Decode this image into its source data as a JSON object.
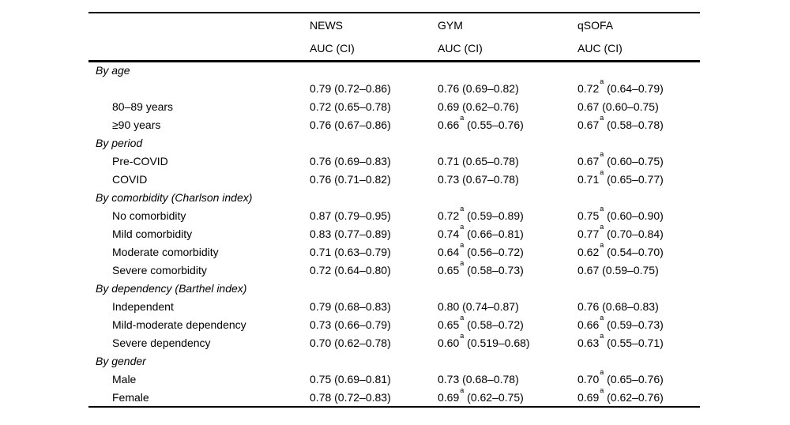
{
  "table": {
    "columns": [
      "NEWS",
      "GYM",
      "qSOFA"
    ],
    "subheaders": [
      "AUC (CI)",
      "AUC (CI)",
      "AUC (CI)"
    ],
    "text_color": "#000000",
    "background_color": "#ffffff",
    "rows": [
      {
        "type": "group",
        "label": "By age",
        "cells": [
          null,
          null,
          null
        ]
      },
      {
        "type": "item",
        "label": "",
        "cells": [
          {
            "auc": "0.79",
            "note": "",
            "ci": "(0.72–0.86)"
          },
          {
            "auc": "0.76",
            "note": "",
            "ci": "(0.69–0.82)"
          },
          {
            "auc": "0.72",
            "note": "a",
            "ci": "(0.64–0.79)"
          }
        ]
      },
      {
        "type": "item",
        "label": "80–89 years",
        "cells": [
          {
            "auc": "0.72",
            "note": "",
            "ci": "(0.65–0.78)"
          },
          {
            "auc": "0.69",
            "note": "",
            "ci": "(0.62–0.76)"
          },
          {
            "auc": "0.67",
            "note": "",
            "ci": "(0.60–0.75)"
          }
        ]
      },
      {
        "type": "item",
        "label": "≥90 years",
        "cells": [
          {
            "auc": "0.76",
            "note": "",
            "ci": "(0.67–0.86)"
          },
          {
            "auc": "0.66",
            "note": "a",
            "ci": "(0.55–0.76)"
          },
          {
            "auc": "0.67",
            "note": "a",
            "ci": "(0.58–0.78)"
          }
        ]
      },
      {
        "type": "group",
        "label": "By period",
        "cells": [
          null,
          null,
          null
        ]
      },
      {
        "type": "item",
        "label": "Pre-COVID",
        "cells": [
          {
            "auc": "0.76",
            "note": "",
            "ci": "(0.69–0.83)"
          },
          {
            "auc": "0.71",
            "note": "",
            "ci": "(0.65–0.78)"
          },
          {
            "auc": "0.67",
            "note": "a",
            "ci": "(0.60–0.75)"
          }
        ]
      },
      {
        "type": "item",
        "label": "COVID",
        "cells": [
          {
            "auc": "0.76",
            "note": "",
            "ci": "(0.71–0.82)"
          },
          {
            "auc": "0.73",
            "note": "",
            "ci": "(0.67–0.78)"
          },
          {
            "auc": "0.71",
            "note": "a",
            "ci": "(0.65–0.77)"
          }
        ]
      },
      {
        "type": "group",
        "label": "By comorbidity (Charlson index)",
        "cells": [
          null,
          null,
          null
        ]
      },
      {
        "type": "item",
        "label": "No comorbidity",
        "cells": [
          {
            "auc": "0.87",
            "note": "",
            "ci": "(0.79–0.95)"
          },
          {
            "auc": "0.72",
            "note": "a",
            "ci": "(0.59–0.89)"
          },
          {
            "auc": "0.75",
            "note": "a",
            "ci": "(0.60–0.90)"
          }
        ]
      },
      {
        "type": "item",
        "label": "Mild comorbidity",
        "cells": [
          {
            "auc": "0.83",
            "note": "",
            "ci": "(0.77–0.89)"
          },
          {
            "auc": "0.74",
            "note": "a",
            "ci": "(0.66–0.81)"
          },
          {
            "auc": "0.77",
            "note": "a",
            "ci": "(0.70–0.84)"
          }
        ]
      },
      {
        "type": "item",
        "label": "Moderate comorbidity",
        "cells": [
          {
            "auc": "0.71",
            "note": "",
            "ci": "(0.63–0.79)"
          },
          {
            "auc": "0.64",
            "note": "a",
            "ci": "(0.56–0.72)"
          },
          {
            "auc": "0.62",
            "note": "a",
            "ci": "(0.54–0.70)"
          }
        ]
      },
      {
        "type": "item",
        "label": "Severe comorbidity",
        "cells": [
          {
            "auc": "0.72",
            "note": "",
            "ci": "(0.64–0.80)"
          },
          {
            "auc": "0.65",
            "note": "a",
            "ci": "(0.58–0.73)"
          },
          {
            "auc": "0.67",
            "note": "",
            "ci": "(0.59–0.75)"
          }
        ]
      },
      {
        "type": "group",
        "label": "By dependency (Barthel index)",
        "cells": [
          null,
          null,
          null
        ]
      },
      {
        "type": "item",
        "label": "Independent",
        "cells": [
          {
            "auc": "0.79",
            "note": "",
            "ci": "(0.68–0.83)"
          },
          {
            "auc": "0.80",
            "note": "",
            "ci": "(0.74–0.87)"
          },
          {
            "auc": "0.76",
            "note": "",
            "ci": "(0.68–0.83)"
          }
        ]
      },
      {
        "type": "item",
        "label": "Mild-moderate dependency",
        "cells": [
          {
            "auc": "0.73",
            "note": "",
            "ci": "(0.66–0.79)"
          },
          {
            "auc": "0.65",
            "note": "a",
            "ci": "(0.58–0.72)"
          },
          {
            "auc": "0.66",
            "note": "a",
            "ci": "(0.59–0.73)"
          }
        ]
      },
      {
        "type": "item",
        "label": "Severe dependency",
        "cells": [
          {
            "auc": "0.70",
            "note": "",
            "ci": "(0.62–0.78)"
          },
          {
            "auc": "0.60",
            "note": "a",
            "ci": "(0.519–0.68)"
          },
          {
            "auc": "0.63",
            "note": "a",
            "ci": "(0.55–0.71)"
          }
        ]
      },
      {
        "type": "group",
        "label": "By gender",
        "cells": [
          null,
          null,
          null
        ]
      },
      {
        "type": "item",
        "label": "Male",
        "cells": [
          {
            "auc": "0.75",
            "note": "",
            "ci": "(0.69–0.81)"
          },
          {
            "auc": "0.73",
            "note": "",
            "ci": "(0.68–0.78)"
          },
          {
            "auc": "0.70",
            "note": "a",
            "ci": "(0.65–0.76)"
          }
        ]
      },
      {
        "type": "item",
        "label": "Female",
        "cells": [
          {
            "auc": "0.78",
            "note": "",
            "ci": "(0.72–0.83)"
          },
          {
            "auc": "0.69",
            "note": "a",
            "ci": "(0.62–0.75)"
          },
          {
            "auc": "0.69",
            "note": "a",
            "ci": "(0.62–0.76)"
          }
        ]
      }
    ]
  }
}
